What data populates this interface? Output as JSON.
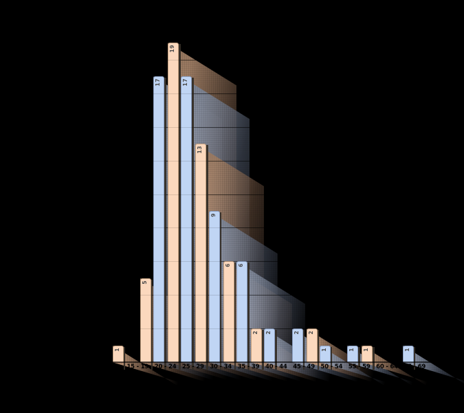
{
  "chart_data": {
    "type": "bar",
    "title": "",
    "categories": [
      "",
      "15 - 19",
      "20 - 24",
      "25 - 29",
      "30 - 34",
      "35 - 39",
      "40 - 44",
      "45 - 49",
      "50 - 54",
      "55 - 59",
      "60 - 64",
      "65 - 69"
    ],
    "series": [
      {
        "name": "series-blue",
        "color": "#C0D5F4",
        "border_color": "#7E91B4",
        "shadow_color_near": "#96A0B4",
        "shadow_color_far": "#5A6478",
        "values": [
          0,
          0,
          17,
          17,
          9,
          6,
          2,
          2,
          1,
          1,
          0,
          1
        ]
      },
      {
        "name": "series-orange",
        "color": "#FBD8BD",
        "border_color": "#B3906F",
        "shadow_color_near": "#BE9678",
        "shadow_color_far": "#785A46",
        "values": [
          1,
          5,
          19,
          13,
          6,
          2,
          0,
          2,
          0,
          1,
          0,
          0
        ]
      }
    ],
    "value_labels_shown": true,
    "value_label_color": "#4C4C4C",
    "category_label_color": "#000000",
    "ylim": [
      0,
      19
    ],
    "gridline_interval": 2,
    "grid": true,
    "legend_position": "none",
    "background_color": "#000000",
    "xlabel": "",
    "ylabel": ""
  }
}
